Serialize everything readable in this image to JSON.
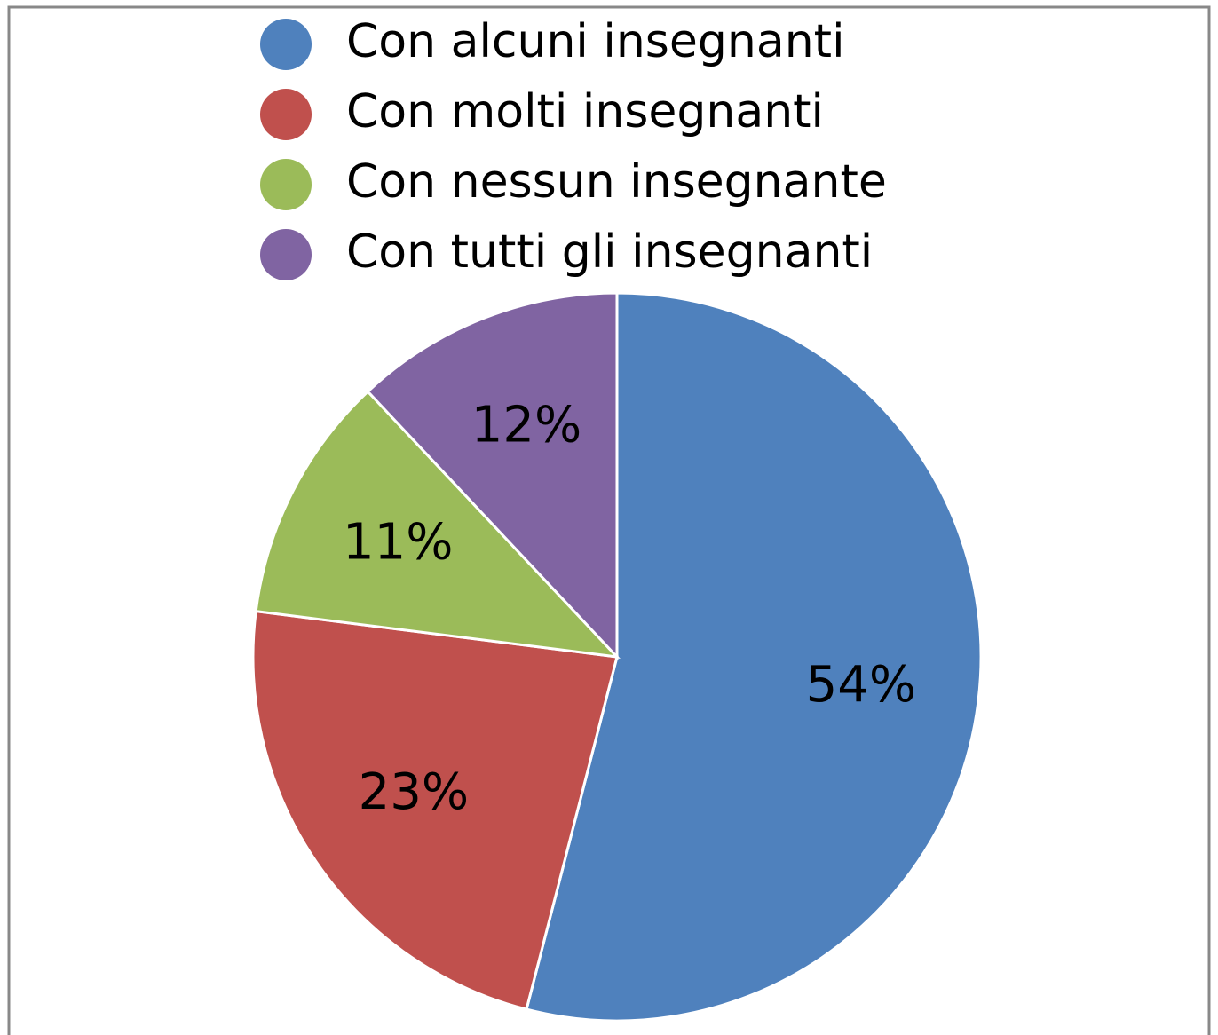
{
  "chart_data": {
    "type": "pie",
    "categories": [
      "Con alcuni insegnanti",
      "Con molti insegnanti",
      "Con nessun insegnante",
      "Con tutti gli insegnanti"
    ],
    "values": [
      54,
      23,
      11,
      12
    ],
    "value_labels": [
      "54%",
      "23%",
      "11%",
      "12%"
    ],
    "colors": [
      "#4f81bd",
      "#c0504d",
      "#9bbb59",
      "#8064a2"
    ],
    "legend": "top"
  }
}
